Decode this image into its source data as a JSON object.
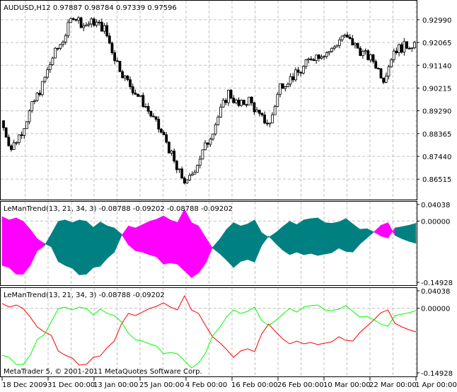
{
  "main": {
    "header": "AUDUSD,H12  0.97887 0.98784 0.97339 0.97596",
    "copyright": "MetaTrader 5, © 2001-2011 MetaQuotes Software Corp."
  },
  "colors": {
    "bull_fill": "#ffffff",
    "bear_fill": "#000000",
    "fill_up": "#ff00ff",
    "fill_down": "#008080",
    "red_line": "#ff0000",
    "green_line": "#00ff00"
  },
  "x_axis": {
    "tick_labels": [
      "18 Dec 2009",
      "31 Dec 00:00",
      "13 Jan 00:00",
      "25 Jan 00:00",
      "4 Feb 00:00",
      "16 Feb 00:00",
      "26 Feb 00:00",
      "10 Mar 00:00",
      "22 Mar 00:00",
      "1 Apr 00:00"
    ]
  },
  "chart_data": [
    {
      "type": "candlestick",
      "title": "AUDUSD,H12",
      "ohlc_readout": [
        "0.97887",
        "0.98784",
        "0.97339",
        "0.97596"
      ],
      "y_ticks": [
        "0.92990",
        "0.92065",
        "0.91140",
        "0.90215",
        "0.89290",
        "0.88365",
        "0.87440",
        "0.86515"
      ],
      "ylim": [
        0.85658,
        0.93763
      ],
      "grid": true,
      "closes": [
        0.8889,
        0.8775,
        0.8847,
        0.8947,
        0.9033,
        0.9147,
        0.9219,
        0.9319,
        0.9276,
        0.929,
        0.9262,
        0.9147,
        0.9061,
        0.9004,
        0.8947,
        0.8875,
        0.8804,
        0.8689,
        0.8632,
        0.8718,
        0.8804,
        0.8904,
        0.9004,
        0.8947,
        0.8975,
        0.8904,
        0.8875,
        0.9033,
        0.9061,
        0.909,
        0.9147,
        0.9162,
        0.9176,
        0.9233,
        0.9205,
        0.9162,
        0.9133,
        0.9061,
        0.9176,
        0.919,
        0.9205
      ]
    },
    {
      "type": "area",
      "title": "LeManTrend(13, 21, 34, 3) -0.08788 -0.09202 -0.08788 -0.09202",
      "y_ticks": [
        "0.04038",
        "0.00000",
        "-0.14928"
      ],
      "ylim": [
        -0.14928,
        0.04038
      ],
      "fill_between": [
        "red",
        "green"
      ]
    },
    {
      "type": "line",
      "title": "LeManTrend(13, 21, 34, 3) -0.08788 -0.09202",
      "y_ticks": [
        "0.04038",
        "0.00000",
        "-0.14928"
      ],
      "ylim": [
        -0.14928,
        0.04038
      ],
      "series": [
        {
          "color": "red",
          "values": [
            0.011,
            0.0028,
            0.0077,
            -0.0005,
            -0.0201,
            -0.043,
            -0.0544,
            -0.0626,
            -0.0986,
            -0.1084,
            -0.1149,
            -0.1313,
            -0.1296,
            -0.1133,
            -0.11,
            -0.0904,
            -0.0757,
            -0.0364,
            -0.0119,
            -0.0168,
            -0.0087,
            -0.0005,
            0.0044,
            0.0126,
            0.0028,
            -0.0037,
            0.029,
            -0.0037,
            -0.0119,
            -0.0397,
            -0.0659,
            -0.079,
            -0.0953,
            -0.1133,
            -0.0986,
            -0.0937,
            -0.1002,
            -0.0593,
            -0.0364,
            -0.0544,
            -0.0708,
            -0.0822,
            -0.0757,
            -0.0822,
            -0.079,
            -0.0839,
            -0.0806,
            -0.0773,
            -0.0659,
            -0.0741,
            -0.0757,
            -0.0561,
            -0.0414,
            -0.0266,
            -0.0103,
            -0.0037,
            -0.0348,
            -0.043,
            -0.0495,
            -0.0544
          ]
        },
        {
          "color": "green",
          "values": [
            -0.1084,
            -0.1133,
            -0.1296,
            -0.1296,
            -0.1084,
            -0.0724,
            -0.061,
            -0.0315,
            -0.0005,
            0.0028,
            -0.0037,
            0.0028,
            -0.0005,
            -0.0152,
            -0.0021,
            -0.0119,
            -0.0168,
            -0.0315,
            -0.0577,
            -0.0724,
            -0.0757,
            -0.0822,
            -0.0871,
            -0.1051,
            -0.1018,
            -0.1051,
            -0.1215,
            -0.1378,
            -0.1264,
            -0.1035,
            -0.0642,
            -0.0446,
            -0.0201,
            -0.0037,
            -0.0119,
            -0.007,
            0.0028,
            -0.0283,
            -0.0397,
            -0.0283,
            -0.0136,
            -0.0005,
            -0.0087,
            0.0028,
            0.0061,
            0.0077,
            -0.0037,
            -0.0054,
            -0.0021,
            0.0061,
            -0.007,
            -0.0201,
            -0.0185,
            -0.0266,
            -0.0364,
            -0.0414,
            -0.0168,
            -0.0136,
            -0.0103,
            -0.0054
          ]
        }
      ]
    }
  ]
}
